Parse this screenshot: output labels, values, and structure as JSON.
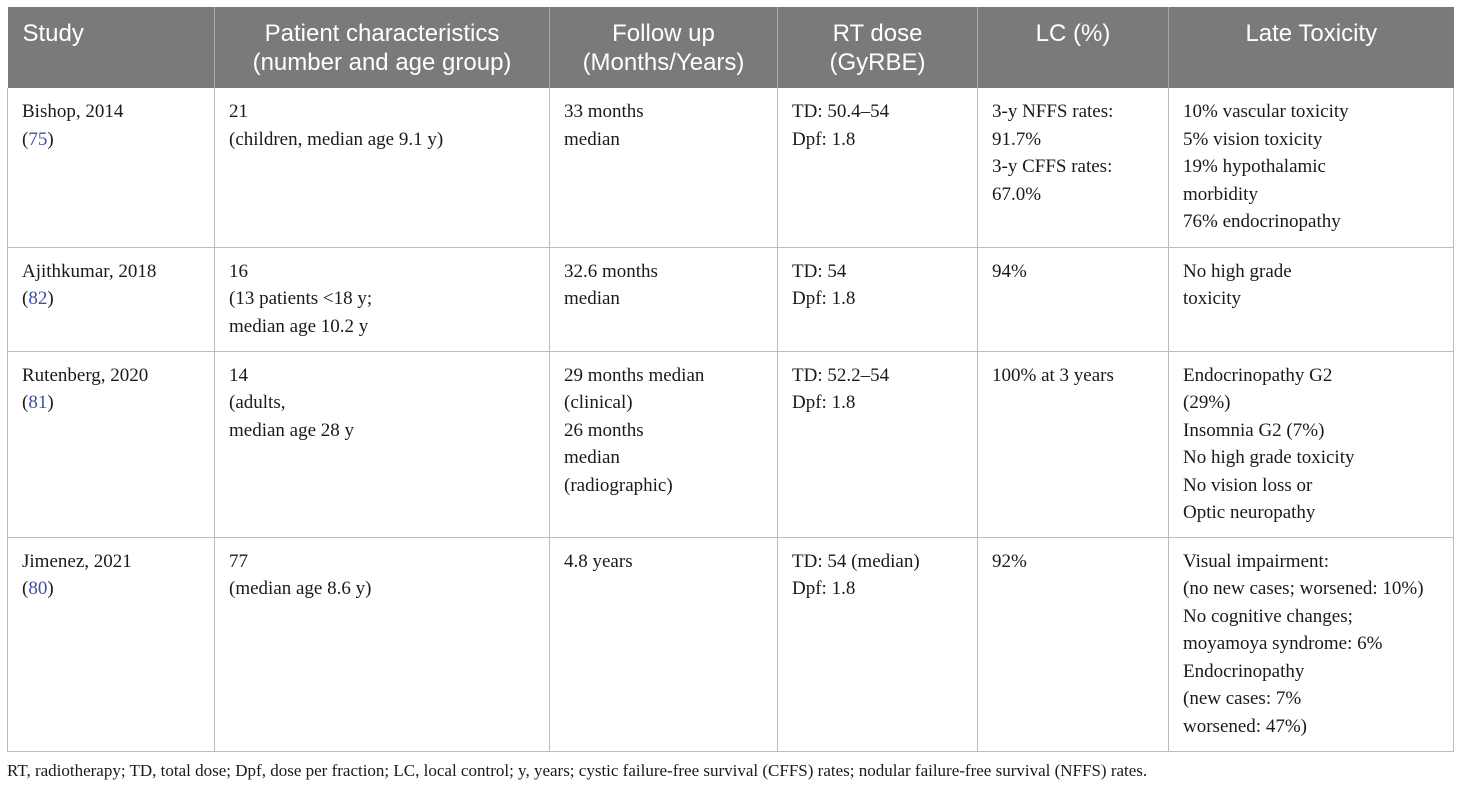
{
  "table": {
    "headers": [
      "Study",
      "Patient characteristics\n(number and age group)",
      "Follow up\n(Months/Years)",
      "RT dose\n(GyRBE)",
      "LC (%)",
      "Late Toxicity"
    ],
    "rows": [
      {
        "study": "Bishop, 2014",
        "ref": "75",
        "patients": "21\n(children, median age 9.1 y)",
        "followup": "33 months\nmedian",
        "dose": "TD: 50.4–54\nDpf: 1.8",
        "lc": "3-y NFFS rates:\n91.7%\n3-y CFFS rates:\n67.0%",
        "toxicity": "10% vascular toxicity\n5% vision toxicity\n19% hypothalamic\nmorbidity\n76% endocrinopathy"
      },
      {
        "study": "Ajithkumar, 2018",
        "ref": "82",
        "patients": "16\n(13 patients <18 y;\nmedian age 10.2 y",
        "followup": "32.6 months\nmedian",
        "dose": "TD: 54\nDpf: 1.8",
        "lc": "94%",
        "toxicity": "No high grade\ntoxicity"
      },
      {
        "study": "Rutenberg, 2020",
        "ref": "81",
        "patients": "14\n(adults,\nmedian age 28 y",
        "followup": "29 months median\n(clinical)\n26 months\nmedian\n(radiographic)",
        "dose": "TD: 52.2–54\nDpf: 1.8",
        "lc": "100% at 3 years",
        "toxicity": "Endocrinopathy G2\n(29%)\nInsomnia G2 (7%)\nNo high grade toxicity\nNo vision loss or\nOptic neuropathy"
      },
      {
        "study": "Jimenez, 2021",
        "ref": "80",
        "patients": "77\n(median age 8.6 y)",
        "followup": "4.8 years",
        "dose": "TD: 54 (median)\nDpf: 1.8",
        "lc": "92%",
        "toxicity": "Visual impairment:\n(no new cases; worsened: 10%)\nNo cognitive changes;\nmoyamoya syndrome: 6%\nEndocrinopathy\n(new cases: 7%\nworsened: 47%)"
      }
    ]
  },
  "footnote": "RT, radiotherapy; TD, total dose; Dpf, dose per fraction; LC, local control; y, years; cystic failure-free survival (CFFS) rates; nodular failure-free survival (NFFS) rates."
}
